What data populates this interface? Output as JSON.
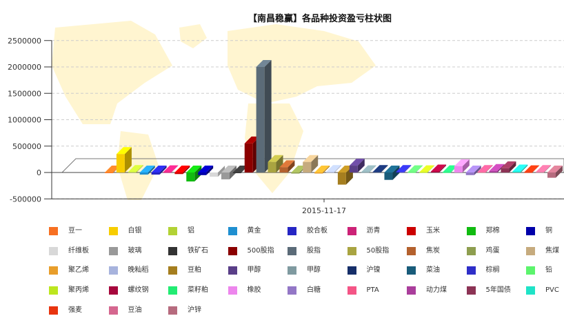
{
  "chart_data": {
    "type": "bar",
    "title": "【南昌稳赢】各品种投资盈亏柱状图",
    "xlabel": "",
    "ylabel": "",
    "x_category": "2015-11-17",
    "ylim": [
      -500000,
      2500000
    ],
    "yticks": [
      -500000,
      0,
      500000,
      1000000,
      1500000,
      2000000,
      2500000
    ],
    "grid": "horizontal dashed",
    "legend_position": "bottom",
    "style": "3d",
    "series": [
      {
        "name": "豆一",
        "value": -10000,
        "color": "#f77022"
      },
      {
        "name": "白银",
        "value": 350000,
        "color": "#f7cd00"
      },
      {
        "name": "铝",
        "value": 10000,
        "color": "#b2d235"
      },
      {
        "name": "黄金",
        "value": -40000,
        "color": "#1f8fd0"
      },
      {
        "name": "胶合板",
        "value": -40000,
        "color": "#2525c4"
      },
      {
        "name": "沥青",
        "value": 5000,
        "color": "#cc2277"
      },
      {
        "name": "玉米",
        "value": -30000,
        "color": "#cc0000"
      },
      {
        "name": "郑棉",
        "value": -170000,
        "color": "#11bb11"
      },
      {
        "name": "铜",
        "value": -50000,
        "color": "#0000aa"
      },
      {
        "name": "纤维板",
        "value": -80000,
        "color": "#d8d8d8"
      },
      {
        "name": "玻璃",
        "value": -130000,
        "color": "#999999"
      },
      {
        "name": "铁矿石",
        "value": -5000,
        "color": "#333333"
      },
      {
        "name": "500股指",
        "value": 550000,
        "color": "#8b0000"
      },
      {
        "name": "股指",
        "value": 2000000,
        "color": "#5b6b78"
      },
      {
        "name": "50股指",
        "value": 200000,
        "color": "#a9a441"
      },
      {
        "name": "焦炭",
        "value": 100000,
        "color": "#b4612e"
      },
      {
        "name": "鸡蛋",
        "value": -20000,
        "color": "#8e9e4f"
      },
      {
        "name": "焦煤",
        "value": 200000,
        "color": "#c6ab7e"
      },
      {
        "name": "聚乙烯",
        "value": -20000,
        "color": "#e89e2b"
      },
      {
        "name": "晚籼稻",
        "value": 10000,
        "color": "#a7b3dd"
      },
      {
        "name": "豆粕",
        "value": -230000,
        "color": "#a57e1f"
      },
      {
        "name": "甲醇",
        "value": 130000,
        "color": "#5a3f88"
      },
      {
        "name": "甲醇",
        "value": 5000,
        "color": "#7f9aa0"
      },
      {
        "name": "沪镍",
        "value": 10000,
        "color": "#162f69"
      },
      {
        "name": "菜油",
        "value": -140000,
        "color": "#195c7a"
      },
      {
        "name": "棕榈",
        "value": 10000,
        "color": "#2e2ec8"
      },
      {
        "name": "铅",
        "value": 5000,
        "color": "#5cf46d"
      },
      {
        "name": "聚丙烯",
        "value": 5000,
        "color": "#bce61f"
      },
      {
        "name": "螺纹钢",
        "value": 20000,
        "color": "#a6073d"
      },
      {
        "name": "菜籽粕",
        "value": 5000,
        "color": "#22ec73"
      },
      {
        "name": "橡胶",
        "value": 120000,
        "color": "#ed86ed"
      },
      {
        "name": "白糖",
        "value": -50000,
        "color": "#9377c6"
      },
      {
        "name": "PTA",
        "value": 10000,
        "color": "#f45586"
      },
      {
        "name": "动力煤",
        "value": 30000,
        "color": "#aa3e9c"
      },
      {
        "name": "5年国债",
        "value": 80000,
        "color": "#8c3355"
      },
      {
        "name": "PVC",
        "value": 20000,
        "color": "#1fe3c7"
      },
      {
        "name": "强麦",
        "value": 5000,
        "color": "#e8340f"
      },
      {
        "name": "豆油",
        "value": 10000,
        "color": "#d5678f"
      },
      {
        "name": "沪锌",
        "value": -100000,
        "color": "#b66b7e"
      }
    ]
  }
}
